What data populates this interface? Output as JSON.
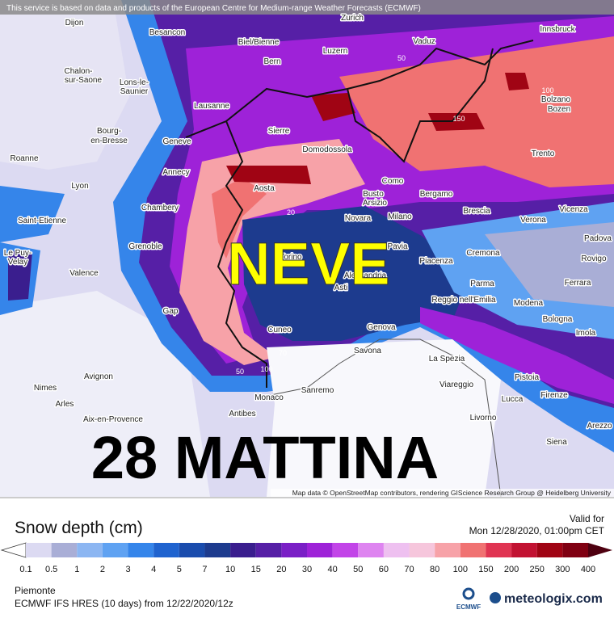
{
  "attribution_top": "This service is based on data and products of the European Centre for Medium-range Weather Forecasts (ECMWF)",
  "attribution_bottom": "Map data © OpenStreetMap contributors, rendering GIScience Research Group @ Heidelberg University",
  "overlay": {
    "title": "NEVE",
    "subtitle": "28 MATTINA"
  },
  "map": {
    "cities": [
      "Dijon",
      "Besancon",
      "Biel/Bienne",
      "Bern",
      "Zurich",
      "Luzern",
      "Vaduz",
      "Innsbruck",
      "Chalon-",
      "sur-Saone",
      "Lons-le-",
      "Saunier",
      "Lausanne",
      "Sierre",
      "Domodossola",
      "Bolzano",
      "Bozen",
      "Bourg-",
      "en-Bresse",
      "Geneve",
      "Roanne",
      "Annecy",
      "Trento",
      "Aosta",
      "Como",
      "Lyon",
      "Busto",
      "Arsizio",
      "Bergamo",
      "Brescia",
      "Vicenza",
      "Chambery",
      "Novara",
      "Milano",
      "Verona",
      "Saint-Etienne",
      "Padova",
      "Le Puy-",
      "Velay",
      "Grenoble",
      "Pavia",
      "Piacenza",
      "Cremona",
      "Rovigo",
      "Valence",
      "Torino",
      "Alessandria",
      "Asti",
      "Parma",
      "Ferrara",
      "Reggio nell'Emilia",
      "Modena",
      "Gap",
      "Bologna",
      "Cuneo",
      "Genova",
      "Imola",
      "Savona",
      "La Spezia",
      "Pistoia",
      "Avignon",
      "Viareggio",
      "Nimes",
      "Sanremo",
      "Lucca",
      "Firenze",
      "Monaco",
      "Arles",
      "Antibes",
      "Aix-en-Provence",
      "Livorno",
      "Arezzo",
      "Siena"
    ],
    "contour_labels": [
      100,
      150,
      70,
      100,
      50,
      20,
      50
    ]
  },
  "legend": {
    "title": "Snow depth (cm)",
    "levels": [
      0.1,
      0.5,
      1,
      2,
      3,
      4,
      5,
      7,
      10,
      15,
      20,
      30,
      40,
      50,
      60,
      70,
      80,
      100,
      150,
      200,
      250,
      300,
      400
    ],
    "colors": [
      "#ffffff",
      "#dcdaf2",
      "#a9aed6",
      "#8cb6f2",
      "#5fa2f2",
      "#3585ea",
      "#1f63cf",
      "#1a4cad",
      "#1d3b8e",
      "#3a1e8e",
      "#561fa6",
      "#7a1fc6",
      "#9e22d8",
      "#c244e8",
      "#de84f0",
      "#eec0f0",
      "#f6c6dc",
      "#f7a2a8",
      "#f07272",
      "#e03452",
      "#c21232",
      "#a00414",
      "#800012",
      "#4e0010"
    ]
  },
  "valid": {
    "label": "Valid for",
    "time": "Mon 12/28/2020, 01:00pm CET"
  },
  "footer": {
    "region": "Piemonte",
    "model": "ECMWF IFS HRES (10 days)  from  12/22/2020/12z",
    "ecmwf_logo": "ECMWF",
    "brand": "meteologix.com"
  }
}
